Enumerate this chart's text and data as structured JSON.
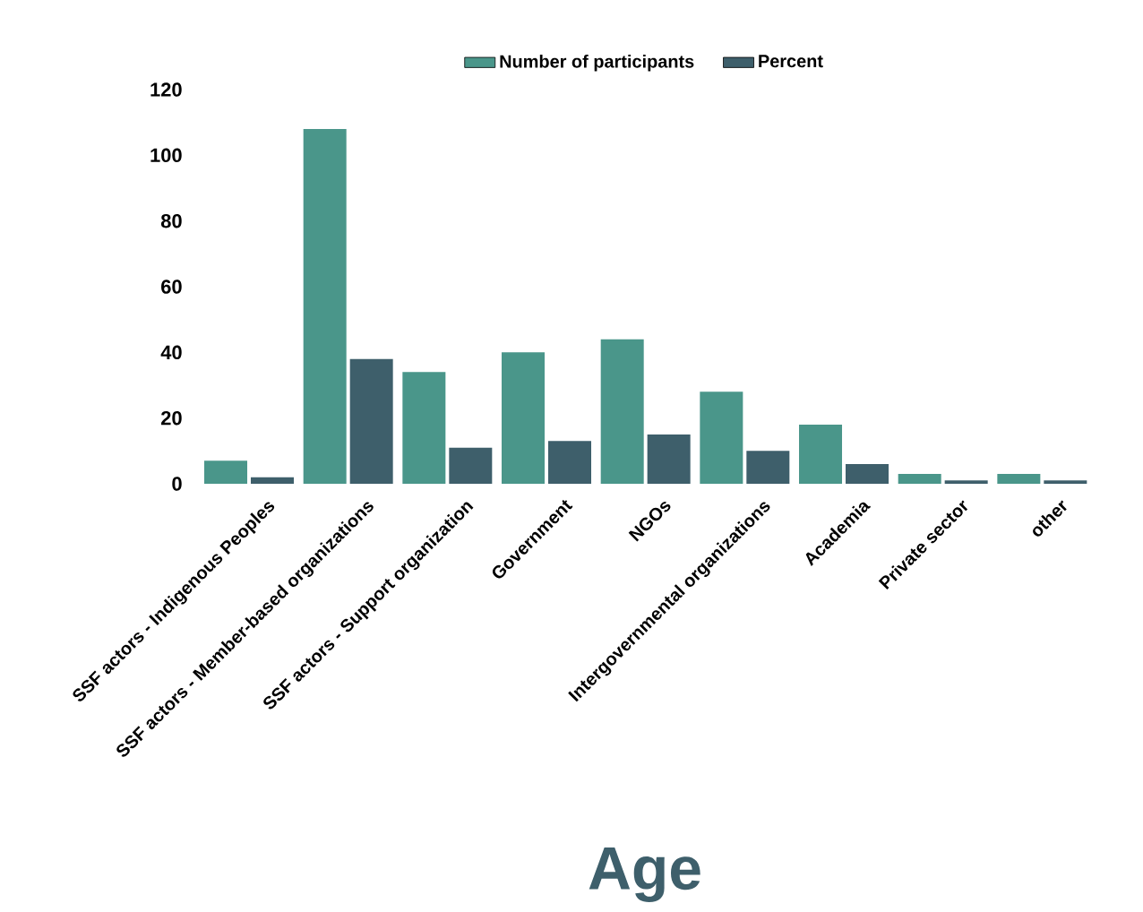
{
  "chart_data": {
    "type": "bar",
    "categories": [
      "SSF actors - Indigenous Peoples",
      "SSF actors - Member-based organizations",
      "SSF actors - Support organization",
      "Government",
      "NGOs",
      "Intergovernmental organizations",
      "Academia",
      "Private sector",
      "other"
    ],
    "series": [
      {
        "name": "Number of participants",
        "color": "#4a968a",
        "values": [
          7,
          108,
          34,
          40,
          44,
          28,
          18,
          3,
          3
        ]
      },
      {
        "name": "Percent",
        "color": "#3e5f6b",
        "values": [
          2,
          38,
          11,
          13,
          15,
          10,
          6,
          1,
          1
        ]
      }
    ],
    "ylim": [
      0,
      120
    ],
    "yticks": [
      0,
      20,
      40,
      60,
      80,
      100,
      120
    ],
    "legend": "top",
    "annotations": [
      "Age"
    ]
  }
}
